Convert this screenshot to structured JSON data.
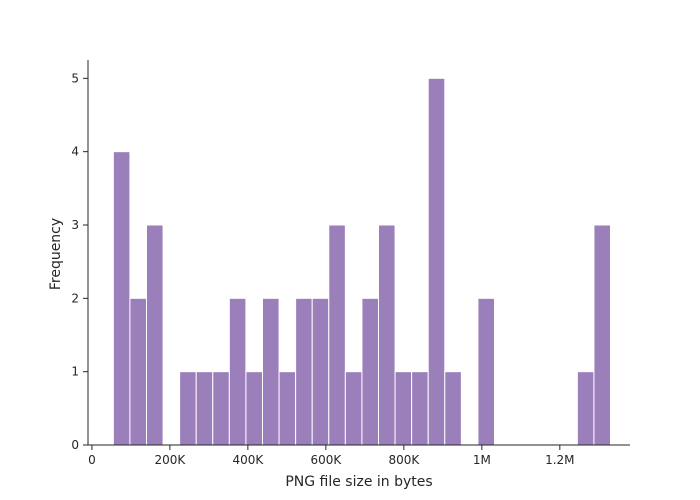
{
  "chart_data": {
    "type": "bar",
    "title": "",
    "xlabel": "PNG file size in bytes",
    "ylabel": "Frequency",
    "bar_color": "#9a7fbb",
    "xlim": [
      -10000,
      1380000
    ],
    "ylim": [
      0,
      5.25
    ],
    "x_ticks": [
      {
        "value": 0,
        "label": "0"
      },
      {
        "value": 200000,
        "label": "200K"
      },
      {
        "value": 400000,
        "label": "400K"
      },
      {
        "value": 600000,
        "label": "600K"
      },
      {
        "value": 800000,
        "label": "800K"
      },
      {
        "value": 1000000,
        "label": "1M"
      },
      {
        "value": 1200000,
        "label": "1.2M"
      }
    ],
    "y_ticks": [
      {
        "value": 0,
        "label": "0"
      },
      {
        "value": 1,
        "label": "1"
      },
      {
        "value": 2,
        "label": "2"
      },
      {
        "value": 3,
        "label": "3"
      },
      {
        "value": 4,
        "label": "4"
      },
      {
        "value": 5,
        "label": "5"
      }
    ],
    "bins": [
      {
        "x0": 55000,
        "x1": 97500,
        "count": 4
      },
      {
        "x0": 97500,
        "x1": 140000,
        "count": 2
      },
      {
        "x0": 140000,
        "x1": 182500,
        "count": 3
      },
      {
        "x0": 182500,
        "x1": 225000,
        "count": 0
      },
      {
        "x0": 225000,
        "x1": 267500,
        "count": 1
      },
      {
        "x0": 267500,
        "x1": 310000,
        "count": 1
      },
      {
        "x0": 310000,
        "x1": 352500,
        "count": 1
      },
      {
        "x0": 352500,
        "x1": 395000,
        "count": 2
      },
      {
        "x0": 395000,
        "x1": 437500,
        "count": 1
      },
      {
        "x0": 437500,
        "x1": 480000,
        "count": 2
      },
      {
        "x0": 480000,
        "x1": 522500,
        "count": 1
      },
      {
        "x0": 522500,
        "x1": 565000,
        "count": 2
      },
      {
        "x0": 565000,
        "x1": 607500,
        "count": 2
      },
      {
        "x0": 607500,
        "x1": 650000,
        "count": 3
      },
      {
        "x0": 650000,
        "x1": 692500,
        "count": 1
      },
      {
        "x0": 692500,
        "x1": 735000,
        "count": 2
      },
      {
        "x0": 735000,
        "x1": 777500,
        "count": 3
      },
      {
        "x0": 777500,
        "x1": 820000,
        "count": 1
      },
      {
        "x0": 820000,
        "x1": 862500,
        "count": 1
      },
      {
        "x0": 862500,
        "x1": 905000,
        "count": 5
      },
      {
        "x0": 905000,
        "x1": 947500,
        "count": 1
      },
      {
        "x0": 947500,
        "x1": 990000,
        "count": 0
      },
      {
        "x0": 990000,
        "x1": 1032500,
        "count": 2
      },
      {
        "x0": 1032500,
        "x1": 1075000,
        "count": 0
      },
      {
        "x0": 1075000,
        "x1": 1117500,
        "count": 0
      },
      {
        "x0": 1117500,
        "x1": 1160000,
        "count": 0
      },
      {
        "x0": 1160000,
        "x1": 1202500,
        "count": 0
      },
      {
        "x0": 1202500,
        "x1": 1245000,
        "count": 0
      },
      {
        "x0": 1245000,
        "x1": 1287500,
        "count": 1
      },
      {
        "x0": 1287500,
        "x1": 1330000,
        "count": 3
      }
    ]
  }
}
